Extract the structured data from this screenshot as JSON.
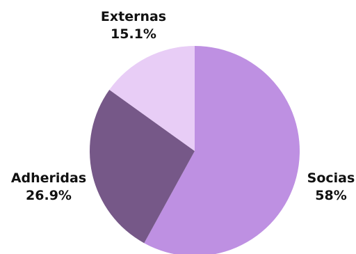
{
  "chart_data": {
    "type": "pie",
    "start_angle_deg": 0,
    "direction": "clockwise",
    "slices": [
      {
        "label": "Socias",
        "value": 58.0,
        "value_label": "58%",
        "color": "#be90e2"
      },
      {
        "label": "Adheridas",
        "value": 26.9,
        "value_label": "26.9%",
        "color": "#765888"
      },
      {
        "label": "Externas",
        "value": 15.1,
        "value_label": "15.1%",
        "color": "#e8cdf6"
      }
    ],
    "legend": "none"
  }
}
